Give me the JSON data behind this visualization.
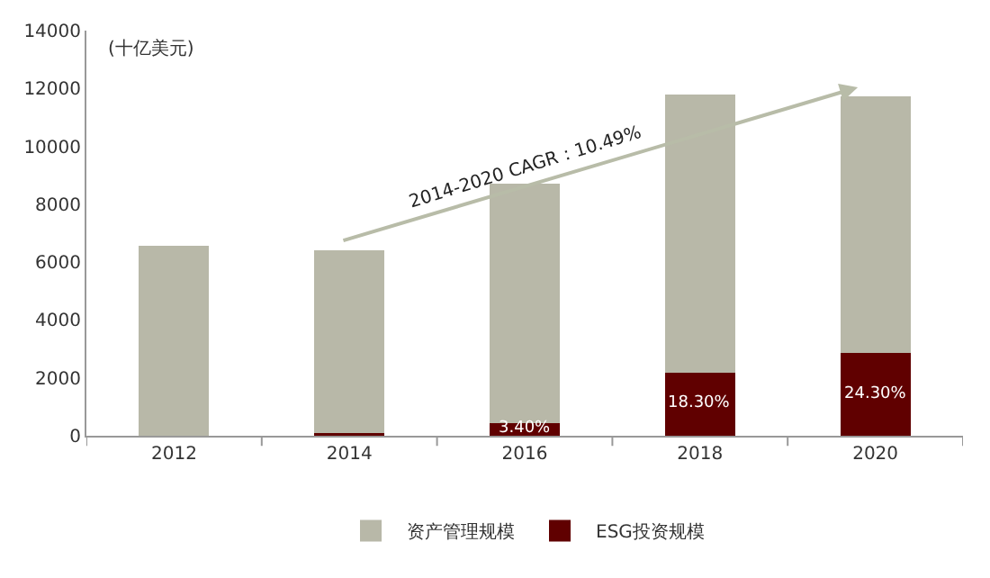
{
  "chart_data": {
    "type": "bar",
    "stacked": true,
    "ylabel": "(十亿美元)",
    "categories": [
      "2012",
      "2014",
      "2016",
      "2018",
      "2020"
    ],
    "series": [
      {
        "name": "ESG投资规模",
        "color": "#600000",
        "values": [
          0,
          80,
          450,
          2190,
          2850
        ]
      },
      {
        "name": "资产管理规模",
        "color": "#b8b8a8",
        "values": [
          6580,
          6340,
          8270,
          9610,
          8870
        ]
      }
    ],
    "ylim": [
      0,
      14000
    ],
    "yticks": [
      0,
      2000,
      4000,
      6000,
      8000,
      10000,
      12000,
      14000
    ],
    "annotations": [
      "2014-2020 CAGR：10.49%",
      {
        "text": "3.40%",
        "x": "2016",
        "y": 450
      },
      {
        "text": "18.30%",
        "x": "2018",
        "y": 2190
      },
      {
        "text": "24.30%",
        "x": "2020",
        "y": 2850
      }
    ],
    "grid": false,
    "legend": "bottom"
  }
}
